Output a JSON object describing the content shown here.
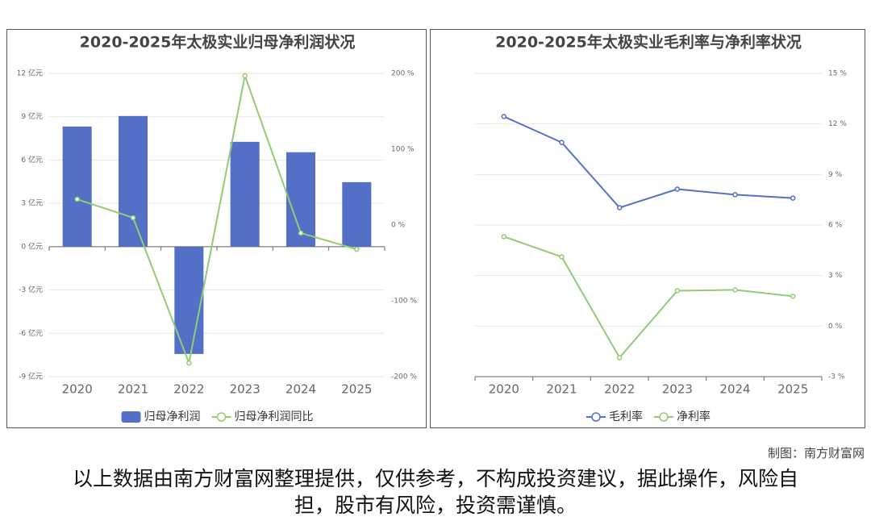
{
  "chart_data": [
    {
      "type": "bar",
      "title": "2020-2025年太极实业归母净利润状况",
      "categories": [
        "2020",
        "2021",
        "2022",
        "2023",
        "2024",
        "2025"
      ],
      "series": [
        {
          "name": "归母净利润",
          "type": "bar",
          "color": "#5470c6",
          "values": [
            8.32,
            9.05,
            -7.43,
            7.26,
            6.54,
            4.47
          ]
        },
        {
          "name": "归母净利润同比",
          "type": "line",
          "axis": "y2",
          "color": "#91cc75",
          "values": [
            34,
            9.6,
            -182,
            197,
            -10.6,
            -32
          ]
        }
      ],
      "ylim": [
        -9,
        12
      ],
      "yticks": [
        {
          "value": -9,
          "label": "-9 亿元"
        },
        {
          "value": -6,
          "label": "-6 亿元"
        },
        {
          "value": -3,
          "label": "-3 亿元"
        },
        {
          "value": 0,
          "label": "0 亿元"
        },
        {
          "value": 3,
          "label": "3 亿元"
        },
        {
          "value": 6,
          "label": "6 亿元"
        },
        {
          "value": 9,
          "label": "9 亿元"
        },
        {
          "value": 12,
          "label": "12 亿元"
        }
      ],
      "y2lim": [
        -200,
        200
      ],
      "y2ticks": [
        {
          "value": -200,
          "label": "-200 %"
        },
        {
          "value": -100,
          "label": "-100 %"
        },
        {
          "value": 0,
          "label": "0 %"
        },
        {
          "value": 100,
          "label": "100 %"
        },
        {
          "value": 200,
          "label": "200 %"
        }
      ],
      "grid": true
    },
    {
      "type": "line",
      "title": "2020-2025年太极实业毛利率与净利率状况",
      "categories": [
        "2020",
        "2021",
        "2022",
        "2023",
        "2024",
        "2025"
      ],
      "series": [
        {
          "name": "毛利率",
          "type": "line",
          "axis": "y2",
          "color": "#5470c6",
          "values": [
            12.44,
            10.9,
            7.03,
            8.13,
            7.8,
            7.6
          ]
        },
        {
          "name": "净利率",
          "type": "line",
          "axis": "y2",
          "color": "#91cc75",
          "values": [
            5.31,
            4.11,
            -1.87,
            2.1,
            2.15,
            1.77
          ]
        }
      ],
      "y2lim": [
        -3,
        15
      ],
      "y2ticks": [
        {
          "value": -3,
          "label": "-3 %"
        },
        {
          "value": 0,
          "label": "0 %"
        },
        {
          "value": 3,
          "label": "3 %"
        },
        {
          "value": 6,
          "label": "6 %"
        },
        {
          "value": 9,
          "label": "9 %"
        },
        {
          "value": 12,
          "label": "12 %"
        },
        {
          "value": 15,
          "label": "15 %"
        }
      ],
      "grid": true
    }
  ],
  "footer": {
    "credit": "制图：南方财富网",
    "disclaimer": "以上数据由南方财富网整理提供，仅供参考，不构成投资建议，据此操作，风险自担，股市有风险，投资需谨慎。"
  }
}
